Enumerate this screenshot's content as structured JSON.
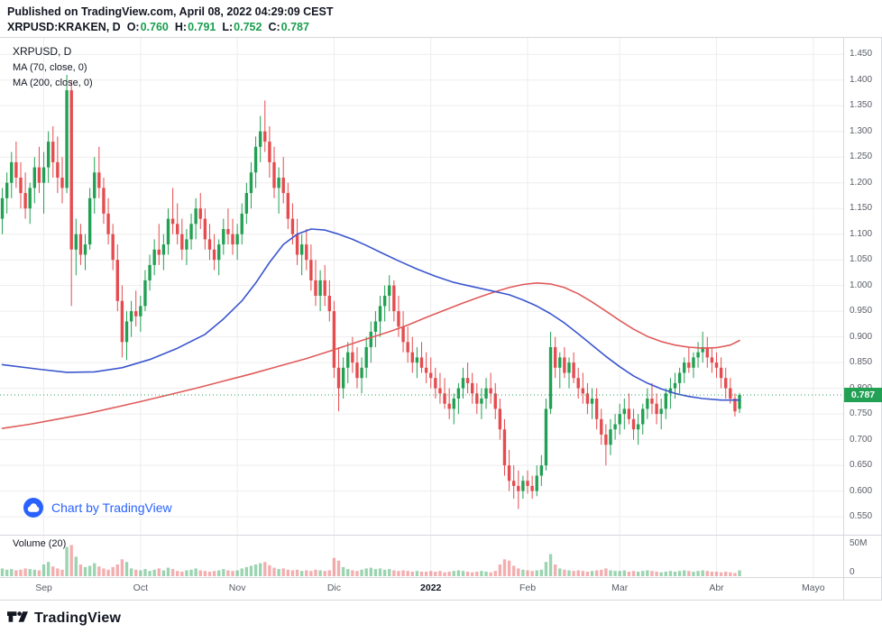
{
  "header": {
    "published_line": "Published on TradingView.com, April 08, 2022 04:29:09 CEST",
    "symbol": "XRPUSD:KRAKEN, D",
    "ohlc": {
      "o_label": "O:",
      "o_value": "0.760",
      "h_label": "H:",
      "h_value": "0.791",
      "l_label": "L:",
      "l_value": "0.752",
      "c_label": "C:",
      "c_value": "0.787"
    }
  },
  "legend": {
    "title": "XRPUSD, D",
    "ma1": "MA (70, close, 0)",
    "ma2": "MA (200, close, 0)"
  },
  "volume_pane": {
    "label": "Volume (20)"
  },
  "watermark": {
    "text": "Chart by TradingView"
  },
  "footer": {
    "brand": "TradingView"
  },
  "axis": {
    "price_ticks": [
      "1.450",
      "1.400",
      "1.350",
      "1.300",
      "1.250",
      "1.200",
      "1.150",
      "1.100",
      "1.050",
      "1.000",
      "0.950",
      "0.900",
      "0.850",
      "0.800",
      "0.750",
      "0.700",
      "0.650",
      "0.600",
      "0.550"
    ],
    "volume_ticks": [
      "50M",
      "0"
    ],
    "last_price_label": "0.787"
  },
  "colors": {
    "up": "#22a053",
    "down": "#e54b4f",
    "vol_up": "rgba(34,160,83,0.45)",
    "vol_down": "rgba(229,75,79,0.45)",
    "ma_fast": "#3a56ce",
    "ma_slow": "#e05b5b",
    "last_price": "#22a053",
    "grid": "#ededee",
    "border": "#d6d8dc",
    "axis_text": "#585d66",
    "header_text": "#131722",
    "ohlc_value": "#1a9e50",
    "watermark_blue": "#2962ff"
  },
  "chart_data": {
    "type": "candlestick",
    "title": "XRPUSD:KRAKEN, D",
    "symbol": "XRPUSD:KRAKEN",
    "interval": "D",
    "ylim": [
      0.515,
      1.482
    ],
    "price_step": 0.05,
    "last_price": 0.787,
    "last_ohlc": {
      "o": 0.76,
      "h": 0.791,
      "l": 0.752,
      "c": 0.787
    },
    "volume_max_m": 50,
    "total_slots": 183,
    "x_ticks": [
      {
        "label": "Sep",
        "slot": 9
      },
      {
        "label": "Oct",
        "slot": 30
      },
      {
        "label": "Nov",
        "slot": 51
      },
      {
        "label": "Dic",
        "slot": 72
      },
      {
        "label": "2022",
        "slot": 93,
        "emphasis": true
      },
      {
        "label": "Feb",
        "slot": 114
      },
      {
        "label": "Mar",
        "slot": 134
      },
      {
        "label": "Abr",
        "slot": 155
      },
      {
        "label": "Mayo",
        "slot": 176
      }
    ],
    "candles": [
      [
        1.13,
        1.19,
        1.1,
        1.17
      ],
      [
        1.17,
        1.22,
        1.14,
        1.2
      ],
      [
        1.2,
        1.26,
        1.17,
        1.24
      ],
      [
        1.24,
        1.28,
        1.19,
        1.21
      ],
      [
        1.21,
        1.24,
        1.15,
        1.18
      ],
      [
        1.18,
        1.22,
        1.13,
        1.15
      ],
      [
        1.15,
        1.2,
        1.12,
        1.19
      ],
      [
        1.19,
        1.25,
        1.16,
        1.23
      ],
      [
        1.23,
        1.27,
        1.18,
        1.2
      ],
      [
        1.2,
        1.26,
        1.14,
        1.23
      ],
      [
        1.23,
        1.3,
        1.2,
        1.28
      ],
      [
        1.28,
        1.31,
        1.21,
        1.24
      ],
      [
        1.24,
        1.29,
        1.18,
        1.21
      ],
      [
        1.21,
        1.25,
        1.16,
        1.19
      ],
      [
        1.19,
        1.41,
        1.18,
        1.38
      ],
      [
        1.38,
        1.4,
        0.96,
        1.07
      ],
      [
        1.07,
        1.13,
        1.02,
        1.1
      ],
      [
        1.1,
        1.12,
        1.04,
        1.06
      ],
      [
        1.06,
        1.1,
        1.03,
        1.08
      ],
      [
        1.08,
        1.19,
        1.07,
        1.17
      ],
      [
        1.17,
        1.25,
        1.14,
        1.22
      ],
      [
        1.22,
        1.27,
        1.17,
        1.19
      ],
      [
        1.19,
        1.21,
        1.12,
        1.14
      ],
      [
        1.14,
        1.17,
        1.08,
        1.1
      ],
      [
        1.1,
        1.12,
        1.03,
        1.05
      ],
      [
        1.05,
        1.08,
        0.95,
        0.97
      ],
      [
        0.97,
        1.0,
        0.86,
        0.89
      ],
      [
        0.89,
        0.95,
        0.855,
        0.93
      ],
      [
        0.93,
        0.97,
        0.9,
        0.95
      ],
      [
        0.95,
        0.99,
        0.92,
        0.94
      ],
      [
        0.94,
        0.98,
        0.91,
        0.96
      ],
      [
        0.96,
        1.03,
        0.95,
        1.01
      ],
      [
        1.01,
        1.06,
        0.99,
        1.04
      ],
      [
        1.04,
        1.09,
        1.02,
        1.07
      ],
      [
        1.07,
        1.12,
        1.04,
        1.06
      ],
      [
        1.06,
        1.1,
        1.03,
        1.08
      ],
      [
        1.08,
        1.15,
        1.06,
        1.13
      ],
      [
        1.13,
        1.19,
        1.1,
        1.12
      ],
      [
        1.12,
        1.16,
        1.08,
        1.1
      ],
      [
        1.1,
        1.13,
        1.05,
        1.07
      ],
      [
        1.07,
        1.11,
        1.04,
        1.09
      ],
      [
        1.09,
        1.14,
        1.07,
        1.12
      ],
      [
        1.12,
        1.17,
        1.09,
        1.15
      ],
      [
        1.15,
        1.18,
        1.11,
        1.13
      ],
      [
        1.13,
        1.15,
        1.07,
        1.09
      ],
      [
        1.09,
        1.12,
        1.05,
        1.07
      ],
      [
        1.07,
        1.1,
        1.03,
        1.05
      ],
      [
        1.05,
        1.09,
        1.02,
        1.08
      ],
      [
        1.08,
        1.13,
        1.06,
        1.11
      ],
      [
        1.11,
        1.15,
        1.08,
        1.1
      ],
      [
        1.1,
        1.13,
        1.06,
        1.08
      ],
      [
        1.08,
        1.12,
        1.05,
        1.1
      ],
      [
        1.1,
        1.16,
        1.08,
        1.14
      ],
      [
        1.14,
        1.2,
        1.12,
        1.18
      ],
      [
        1.18,
        1.24,
        1.15,
        1.22
      ],
      [
        1.22,
        1.29,
        1.19,
        1.27
      ],
      [
        1.27,
        1.33,
        1.24,
        1.3
      ],
      [
        1.3,
        1.36,
        1.26,
        1.28
      ],
      [
        1.28,
        1.31,
        1.21,
        1.24
      ],
      [
        1.24,
        1.27,
        1.17,
        1.19
      ],
      [
        1.19,
        1.23,
        1.14,
        1.21
      ],
      [
        1.21,
        1.25,
        1.16,
        1.18
      ],
      [
        1.18,
        1.2,
        1.11,
        1.13
      ],
      [
        1.13,
        1.16,
        1.08,
        1.1
      ],
      [
        1.1,
        1.13,
        1.04,
        1.06
      ],
      [
        1.06,
        1.1,
        1.02,
        1.08
      ],
      [
        1.08,
        1.11,
        1.03,
        1.05
      ],
      [
        1.05,
        1.08,
        0.99,
        1.01
      ],
      [
        1.01,
        1.05,
        0.96,
        0.98
      ],
      [
        0.98,
        1.03,
        0.95,
        1.01
      ],
      [
        1.01,
        1.04,
        0.96,
        0.98
      ],
      [
        0.98,
        1.01,
        0.93,
        0.95
      ],
      [
        0.95,
        0.97,
        0.82,
        0.84
      ],
      [
        0.84,
        0.88,
        0.755,
        0.8
      ],
      [
        0.8,
        0.86,
        0.78,
        0.84
      ],
      [
        0.84,
        0.89,
        0.81,
        0.87
      ],
      [
        0.87,
        0.9,
        0.83,
        0.85
      ],
      [
        0.85,
        0.88,
        0.8,
        0.82
      ],
      [
        0.82,
        0.86,
        0.79,
        0.84
      ],
      [
        0.84,
        0.9,
        0.82,
        0.88
      ],
      [
        0.88,
        0.93,
        0.85,
        0.91
      ],
      [
        0.91,
        0.95,
        0.88,
        0.93
      ],
      [
        0.93,
        0.98,
        0.9,
        0.96
      ],
      [
        0.96,
        1.0,
        0.93,
        0.98
      ],
      [
        0.98,
        1.02,
        0.95,
        1.0
      ],
      [
        1.0,
        1.01,
        0.93,
        0.95
      ],
      [
        0.95,
        0.98,
        0.9,
        0.92
      ],
      [
        0.92,
        0.95,
        0.87,
        0.89
      ],
      [
        0.89,
        0.92,
        0.85,
        0.87
      ],
      [
        0.87,
        0.9,
        0.83,
        0.85
      ],
      [
        0.85,
        0.88,
        0.82,
        0.86
      ],
      [
        0.86,
        0.89,
        0.83,
        0.84
      ],
      [
        0.84,
        0.87,
        0.81,
        0.83
      ],
      [
        0.83,
        0.86,
        0.8,
        0.82
      ],
      [
        0.82,
        0.84,
        0.78,
        0.8
      ],
      [
        0.8,
        0.83,
        0.77,
        0.79
      ],
      [
        0.79,
        0.82,
        0.76,
        0.77
      ],
      [
        0.77,
        0.8,
        0.74,
        0.76
      ],
      [
        0.76,
        0.79,
        0.73,
        0.78
      ],
      [
        0.78,
        0.81,
        0.75,
        0.8
      ],
      [
        0.8,
        0.84,
        0.78,
        0.82
      ],
      [
        0.82,
        0.85,
        0.79,
        0.81
      ],
      [
        0.81,
        0.83,
        0.77,
        0.79
      ],
      [
        0.79,
        0.81,
        0.75,
        0.77
      ],
      [
        0.77,
        0.8,
        0.74,
        0.78
      ],
      [
        0.78,
        0.82,
        0.76,
        0.8
      ],
      [
        0.8,
        0.83,
        0.77,
        0.79
      ],
      [
        0.79,
        0.81,
        0.74,
        0.76
      ],
      [
        0.76,
        0.78,
        0.7,
        0.72
      ],
      [
        0.72,
        0.74,
        0.63,
        0.65
      ],
      [
        0.65,
        0.68,
        0.6,
        0.62
      ],
      [
        0.62,
        0.65,
        0.585,
        0.61
      ],
      [
        0.61,
        0.64,
        0.565,
        0.6
      ],
      [
        0.6,
        0.63,
        0.585,
        0.62
      ],
      [
        0.62,
        0.64,
        0.595,
        0.61
      ],
      [
        0.61,
        0.63,
        0.585,
        0.6
      ],
      [
        0.6,
        0.65,
        0.59,
        0.63
      ],
      [
        0.63,
        0.67,
        0.61,
        0.65
      ],
      [
        0.65,
        0.78,
        0.64,
        0.76
      ],
      [
        0.76,
        0.91,
        0.75,
        0.88
      ],
      [
        0.88,
        0.9,
        0.82,
        0.84
      ],
      [
        0.84,
        0.87,
        0.8,
        0.86
      ],
      [
        0.86,
        0.88,
        0.82,
        0.83
      ],
      [
        0.83,
        0.86,
        0.8,
        0.85
      ],
      [
        0.85,
        0.87,
        0.81,
        0.82
      ],
      [
        0.82,
        0.84,
        0.78,
        0.8
      ],
      [
        0.8,
        0.83,
        0.77,
        0.79
      ],
      [
        0.79,
        0.81,
        0.75,
        0.77
      ],
      [
        0.77,
        0.8,
        0.74,
        0.78
      ],
      [
        0.78,
        0.8,
        0.72,
        0.74
      ],
      [
        0.74,
        0.76,
        0.69,
        0.71
      ],
      [
        0.71,
        0.73,
        0.65,
        0.69
      ],
      [
        0.69,
        0.74,
        0.67,
        0.72
      ],
      [
        0.72,
        0.75,
        0.7,
        0.73
      ],
      [
        0.73,
        0.77,
        0.71,
        0.75
      ],
      [
        0.75,
        0.78,
        0.72,
        0.76
      ],
      [
        0.76,
        0.79,
        0.73,
        0.74
      ],
      [
        0.74,
        0.76,
        0.7,
        0.72
      ],
      [
        0.72,
        0.75,
        0.69,
        0.73
      ],
      [
        0.73,
        0.77,
        0.71,
        0.76
      ],
      [
        0.76,
        0.8,
        0.74,
        0.78
      ],
      [
        0.78,
        0.81,
        0.75,
        0.77
      ],
      [
        0.77,
        0.79,
        0.73,
        0.75
      ],
      [
        0.75,
        0.78,
        0.72,
        0.76
      ],
      [
        0.76,
        0.8,
        0.74,
        0.79
      ],
      [
        0.79,
        0.82,
        0.76,
        0.8
      ],
      [
        0.8,
        0.83,
        0.78,
        0.81
      ],
      [
        0.81,
        0.84,
        0.79,
        0.83
      ],
      [
        0.83,
        0.86,
        0.81,
        0.85
      ],
      [
        0.85,
        0.88,
        0.83,
        0.84
      ],
      [
        0.84,
        0.87,
        0.82,
        0.86
      ],
      [
        0.86,
        0.89,
        0.84,
        0.87
      ],
      [
        0.87,
        0.91,
        0.85,
        0.88
      ],
      [
        0.88,
        0.9,
        0.84,
        0.86
      ],
      [
        0.86,
        0.88,
        0.83,
        0.85
      ],
      [
        0.85,
        0.87,
        0.82,
        0.84
      ],
      [
        0.84,
        0.86,
        0.8,
        0.82
      ],
      [
        0.82,
        0.84,
        0.78,
        0.8
      ],
      [
        0.8,
        0.82,
        0.77,
        0.78
      ],
      [
        0.78,
        0.79,
        0.745,
        0.755
      ],
      [
        0.76,
        0.791,
        0.752,
        0.787
      ]
    ],
    "volumes_m": [
      12,
      10,
      11,
      9,
      10,
      12,
      11,
      10,
      9,
      18,
      22,
      15,
      12,
      10,
      45,
      48,
      30,
      18,
      14,
      16,
      20,
      15,
      12,
      10,
      14,
      18,
      26,
      22,
      12,
      10,
      9,
      11,
      8,
      10,
      12,
      9,
      13,
      11,
      8,
      7,
      9,
      10,
      12,
      9,
      8,
      7,
      8,
      9,
      11,
      9,
      8,
      9,
      12,
      14,
      16,
      18,
      20,
      22,
      17,
      13,
      11,
      12,
      10,
      9,
      10,
      8,
      9,
      8,
      10,
      9,
      8,
      9,
      28,
      24,
      14,
      11,
      9,
      8,
      10,
      12,
      13,
      11,
      12,
      10,
      11,
      9,
      8,
      9,
      8,
      7,
      8,
      7,
      7,
      8,
      7,
      8,
      6,
      7,
      8,
      9,
      8,
      7,
      6,
      7,
      8,
      7,
      6,
      8,
      18,
      26,
      24,
      16,
      12,
      10,
      9,
      8,
      9,
      10,
      22,
      34,
      18,
      12,
      10,
      9,
      8,
      9,
      8,
      7,
      8,
      9,
      10,
      12,
      9,
      8,
      8,
      9,
      7,
      8,
      7,
      8,
      9,
      8,
      7,
      6,
      7,
      8,
      7,
      8,
      9,
      8,
      7,
      8,
      9,
      8,
      7,
      7,
      6,
      7,
      6,
      5,
      9
    ],
    "ma70": [
      [
        0,
        0.846
      ],
      [
        8,
        0.837
      ],
      [
        14,
        0.831
      ],
      [
        20,
        0.832
      ],
      [
        26,
        0.84
      ],
      [
        32,
        0.856
      ],
      [
        38,
        0.878
      ],
      [
        44,
        0.905
      ],
      [
        48,
        0.935
      ],
      [
        52,
        0.97
      ],
      [
        55,
        1.005
      ],
      [
        58,
        1.045
      ],
      [
        61,
        1.08
      ],
      [
        64,
        1.1
      ],
      [
        67,
        1.11
      ],
      [
        70,
        1.108
      ],
      [
        73,
        1.1
      ],
      [
        76,
        1.09
      ],
      [
        79,
        1.078
      ],
      [
        82,
        1.065
      ],
      [
        86,
        1.048
      ],
      [
        90,
        1.032
      ],
      [
        94,
        1.018
      ],
      [
        98,
        1.006
      ],
      [
        102,
        0.998
      ],
      [
        106,
        0.99
      ],
      [
        110,
        0.982
      ],
      [
        113,
        0.972
      ],
      [
        116,
        0.96
      ],
      [
        119,
        0.945
      ],
      [
        122,
        0.927
      ],
      [
        125,
        0.906
      ],
      [
        128,
        0.884
      ],
      [
        131,
        0.862
      ],
      [
        134,
        0.842
      ],
      [
        137,
        0.824
      ],
      [
        140,
        0.81
      ],
      [
        143,
        0.799
      ],
      [
        146,
        0.79
      ],
      [
        149,
        0.784
      ],
      [
        152,
        0.78
      ],
      [
        156,
        0.777
      ],
      [
        160,
        0.777
      ]
    ],
    "ma200": [
      [
        0,
        0.722
      ],
      [
        6,
        0.73
      ],
      [
        12,
        0.74
      ],
      [
        18,
        0.75
      ],
      [
        24,
        0.762
      ],
      [
        30,
        0.774
      ],
      [
        36,
        0.787
      ],
      [
        42,
        0.8
      ],
      [
        48,
        0.814
      ],
      [
        54,
        0.828
      ],
      [
        60,
        0.843
      ],
      [
        66,
        0.858
      ],
      [
        72,
        0.875
      ],
      [
        78,
        0.893
      ],
      [
        84,
        0.91
      ],
      [
        88,
        0.923
      ],
      [
        92,
        0.938
      ],
      [
        96,
        0.952
      ],
      [
        100,
        0.966
      ],
      [
        104,
        0.979
      ],
      [
        107,
        0.988
      ],
      [
        110,
        0.996
      ],
      [
        113,
        1.002
      ],
      [
        116,
        1.005
      ],
      [
        119,
        1.003
      ],
      [
        122,
        0.996
      ],
      [
        125,
        0.984
      ],
      [
        128,
        0.968
      ],
      [
        131,
        0.95
      ],
      [
        134,
        0.932
      ],
      [
        137,
        0.915
      ],
      [
        140,
        0.901
      ],
      [
        143,
        0.891
      ],
      [
        146,
        0.884
      ],
      [
        149,
        0.88
      ],
      [
        152,
        0.878
      ],
      [
        155,
        0.879
      ],
      [
        158,
        0.884
      ],
      [
        160,
        0.893
      ]
    ]
  }
}
